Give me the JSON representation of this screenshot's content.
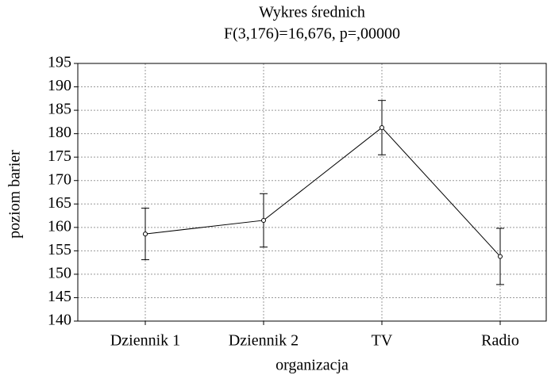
{
  "chart_data": {
    "type": "line",
    "title": "Wykres średnich",
    "subtitle": "F(3,176)=16,676, p=,00000",
    "xlabel": "organizacja",
    "ylabel": "poziom barier",
    "categories": [
      "Dziennik 1",
      "Dziennik 2",
      "TV",
      "Radio"
    ],
    "series": [
      {
        "name": "poziom barier",
        "color": "#000000",
        "values": [
          158.6,
          161.5,
          181.3,
          153.8
        ],
        "errors": [
          5.5,
          5.7,
          5.8,
          6.0
        ]
      }
    ],
    "ylim": [
      140,
      195
    ],
    "yticks": [
      140,
      145,
      150,
      155,
      160,
      165,
      170,
      175,
      180,
      185,
      190,
      195
    ],
    "grid": true
  }
}
